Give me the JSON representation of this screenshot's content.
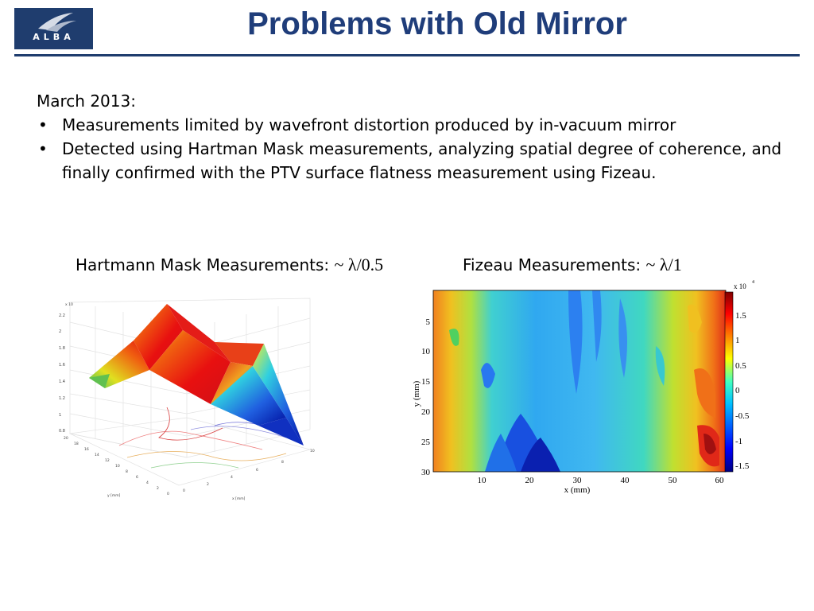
{
  "header": {
    "logo_text": "ALBA",
    "title": "Problems with Old Mirror"
  },
  "intro": {
    "date": "March 2013:",
    "bullets": [
      "Measurements limited by wavefront distortion produced by in-vacuum mirror",
      "Detected using Hartman Mask measurements, analyzing spatial degree of coherence, and finally confirmed with the PTV surface flatness measurement using Fizeau."
    ]
  },
  "figures": {
    "hartmann": {
      "caption": "Hartmann Mask Measurements: ",
      "formula": "~ λ/0.5",
      "z_scale": "x 10",
      "z_ticks": [
        "2.2",
        "2",
        "1.8",
        "1.6",
        "1.4",
        "1.2",
        "1",
        "0.8"
      ],
      "y_ticks": [
        "20",
        "18",
        "16",
        "14",
        "12",
        "10",
        "8",
        "6",
        "4",
        "2",
        "0"
      ],
      "x_ticks": [
        "0",
        "2",
        "4",
        "6",
        "8",
        "10"
      ],
      "y_label": "y [mm]",
      "x_label": "x [mm]"
    },
    "fizeau": {
      "caption": "Fizeau Measurements: ",
      "formula": "~ λ/1",
      "y_label": "y (mm)",
      "x_label": "x (mm)",
      "y_ticks": [
        "5",
        "10",
        "15",
        "20",
        "25",
        "30"
      ],
      "x_ticks": [
        "10",
        "20",
        "30",
        "40",
        "50",
        "60"
      ],
      "colorbar_scale": "x 10",
      "colorbar_exp": "4",
      "colorbar_ticks": [
        "1.5",
        "1",
        "0.5",
        "0",
        "-0.5",
        "-1",
        "-1.5"
      ]
    }
  }
}
